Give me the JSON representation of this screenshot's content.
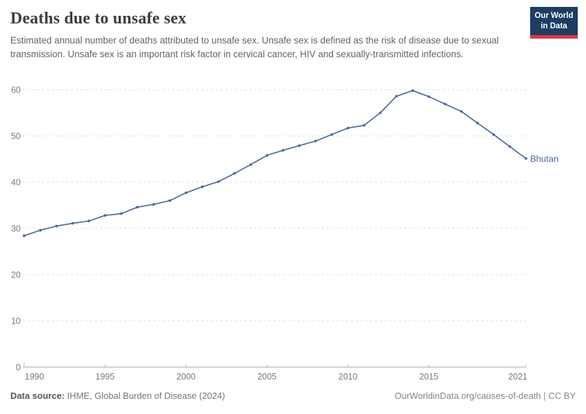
{
  "header": {
    "title": "Deaths due to unsafe sex",
    "subtitle": "Estimated annual number of deaths attributed to unsafe sex. Unsafe sex is defined as the risk of disease due to sexual transmission. Unsafe sex is an important risk factor in cervical cancer, HIV and sexually-transmitted infections.",
    "logo": {
      "line1": "Our World",
      "line2": "in Data",
      "bg_color": "#1d3d63",
      "accent_color": "#e0393e"
    }
  },
  "chart_data": {
    "type": "line",
    "title": "Deaths due to unsafe sex",
    "series": [
      {
        "name": "Bhutan",
        "x": [
          1990,
          1991,
          1992,
          1993,
          1994,
          1995,
          1996,
          1997,
          1998,
          1999,
          2000,
          2001,
          2002,
          2003,
          2004,
          2005,
          2006,
          2007,
          2008,
          2009,
          2010,
          2011,
          2012,
          2013,
          2014,
          2015,
          2016,
          2017,
          2018,
          2019,
          2020,
          2021
        ],
        "values": [
          28.4,
          29.6,
          30.5,
          31.1,
          31.6,
          32.8,
          33.2,
          34.6,
          35.2,
          36.0,
          37.7,
          39.0,
          40.1,
          41.9,
          43.8,
          45.8,
          46.9,
          47.9,
          48.9,
          50.3,
          51.7,
          52.3,
          55.0,
          58.6,
          59.8,
          58.5,
          56.9,
          55.3,
          52.8,
          50.3,
          47.7,
          45.1
        ]
      }
    ],
    "xlabel": "",
    "ylabel": "",
    "xlim": [
      1990,
      2021
    ],
    "ylim": [
      0,
      60
    ],
    "xticks": [
      1990,
      1995,
      2000,
      2005,
      2010,
      2015,
      2021
    ],
    "yticks": [
      0,
      10,
      20,
      30,
      40,
      50,
      60
    ],
    "grid": "horizontal-dashed",
    "legend_position": "end-of-line",
    "line_color": "#4c6a9e",
    "grid_color": "#dedede",
    "axis_color": "#a5a5a5",
    "tick_label_color": "#787878",
    "entity_label": "Bhutan"
  },
  "footer": {
    "source_label": "Data source:",
    "source_value": " IHME, Global Burden of Disease (2024)",
    "credit": "OurWorldinData.org/causes-of-death | CC BY"
  }
}
